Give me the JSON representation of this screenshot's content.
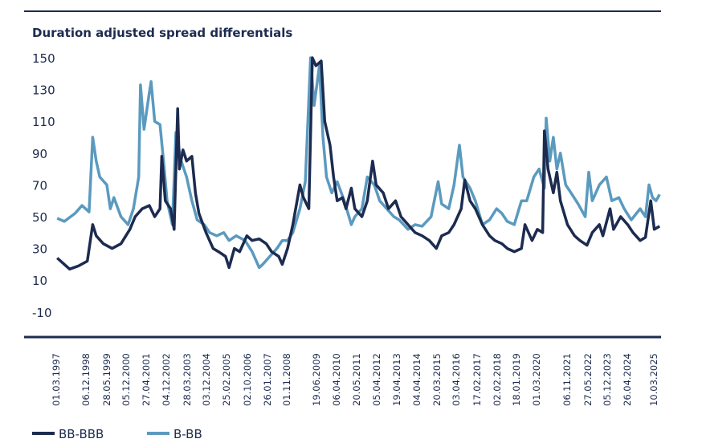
{
  "chart_data": {
    "type": "line",
    "title": "Duration adjusted spread differentials",
    "xlabel": "",
    "ylabel": "",
    "ylim": [
      -26,
      150
    ],
    "yticks": [
      150,
      130,
      110,
      90,
      70,
      50,
      30,
      10,
      -10
    ],
    "xtick_labels": [
      "01.03.1997",
      "06.12.1998",
      "28.05.1999",
      "05.12.2000",
      "27.04.2001",
      "04.12.2002",
      "28.03.2003",
      "03.12.2004",
      "25.02.2005",
      "02.10.2006",
      "26.01.2007",
      "01.11.2008",
      "19.06.2009",
      "06.04.2010",
      "20.05.2011",
      "05.04.2012",
      "19.04.2013",
      "04.04.2014",
      "20.03.2015",
      "03.04.2016",
      "17.02.2017",
      "02.02.2018",
      "18.01.2019",
      "01.03.2020",
      "06.11.2021",
      "27.05.2022",
      "05.12.2023",
      "26.04.2024",
      "10.03.2025"
    ],
    "grid": false,
    "legend": "bottom-left",
    "series": [
      {
        "name": "BB-BBB",
        "color": "#1c2b4f",
        "points": [
          [
            "1997-03",
            24
          ],
          [
            "1997-07",
            20
          ],
          [
            "1997-10",
            17
          ],
          [
            "1998-03",
            19
          ],
          [
            "1998-08",
            22
          ],
          [
            "1998-11",
            45
          ],
          [
            "1999-01",
            38
          ],
          [
            "1999-05",
            33
          ],
          [
            "1999-10",
            30
          ],
          [
            "2000-03",
            33
          ],
          [
            "2000-08",
            42
          ],
          [
            "2000-11",
            50
          ],
          [
            "2001-03",
            55
          ],
          [
            "2001-07",
            57
          ],
          [
            "2001-10",
            50
          ],
          [
            "2002-01",
            55
          ],
          [
            "2002-02",
            88
          ],
          [
            "2002-04",
            60
          ],
          [
            "2002-07",
            55
          ],
          [
            "2002-09",
            42
          ],
          [
            "2002-11",
            118
          ],
          [
            "2002-12",
            80
          ],
          [
            "2003-02",
            92
          ],
          [
            "2003-04",
            85
          ],
          [
            "2003-07",
            88
          ],
          [
            "2003-09",
            65
          ],
          [
            "2003-11",
            52
          ],
          [
            "2004-03",
            40
          ],
          [
            "2004-07",
            30
          ],
          [
            "2004-10",
            28
          ],
          [
            "2005-02",
            25
          ],
          [
            "2005-04",
            18
          ],
          [
            "2005-07",
            30
          ],
          [
            "2005-10",
            28
          ],
          [
            "2006-02",
            38
          ],
          [
            "2006-05",
            35
          ],
          [
            "2006-09",
            36
          ],
          [
            "2007-01",
            33
          ],
          [
            "2007-04",
            28
          ],
          [
            "2007-08",
            25
          ],
          [
            "2007-10",
            20
          ],
          [
            "2008-01",
            30
          ],
          [
            "2008-04",
            45
          ],
          [
            "2008-08",
            70
          ],
          [
            "2008-10",
            62
          ],
          [
            "2009-01",
            55
          ],
          [
            "2009-03",
            150
          ],
          [
            "2009-05",
            145
          ],
          [
            "2009-08",
            148
          ],
          [
            "2009-10",
            110
          ],
          [
            "2010-01",
            95
          ],
          [
            "2010-03",
            75
          ],
          [
            "2010-05",
            60
          ],
          [
            "2010-08",
            62
          ],
          [
            "2010-10",
            55
          ],
          [
            "2011-01",
            68
          ],
          [
            "2011-03",
            55
          ],
          [
            "2011-07",
            50
          ],
          [
            "2011-10",
            60
          ],
          [
            "2012-01",
            85
          ],
          [
            "2012-03",
            70
          ],
          [
            "2012-07",
            65
          ],
          [
            "2012-10",
            55
          ],
          [
            "2013-02",
            60
          ],
          [
            "2013-05",
            50
          ],
          [
            "2013-09",
            45
          ],
          [
            "2014-01",
            40
          ],
          [
            "2014-05",
            38
          ],
          [
            "2014-09",
            35
          ],
          [
            "2015-01",
            30
          ],
          [
            "2015-04",
            38
          ],
          [
            "2015-08",
            40
          ],
          [
            "2015-11",
            45
          ],
          [
            "2016-03",
            55
          ],
          [
            "2016-05",
            73
          ],
          [
            "2016-08",
            60
          ],
          [
            "2016-11",
            55
          ],
          [
            "2017-03",
            45
          ],
          [
            "2017-07",
            38
          ],
          [
            "2017-10",
            35
          ],
          [
            "2018-02",
            33
          ],
          [
            "2018-05",
            30
          ],
          [
            "2018-09",
            28
          ],
          [
            "2019-01",
            30
          ],
          [
            "2019-03",
            45
          ],
          [
            "2019-07",
            35
          ],
          [
            "2019-10",
            42
          ],
          [
            "2020-01",
            40
          ],
          [
            "2020-02",
            104
          ],
          [
            "2020-04",
            80
          ],
          [
            "2020-07",
            65
          ],
          [
            "2020-09",
            78
          ],
          [
            "2020-11",
            60
          ],
          [
            "2021-03",
            45
          ],
          [
            "2021-07",
            38
          ],
          [
            "2021-10",
            35
          ],
          [
            "2022-02",
            32
          ],
          [
            "2022-05",
            40
          ],
          [
            "2022-09",
            45
          ],
          [
            "2022-11",
            38
          ],
          [
            "2023-03",
            55
          ],
          [
            "2023-05",
            42
          ],
          [
            "2023-09",
            50
          ],
          [
            "2024-01",
            45
          ],
          [
            "2024-04",
            40
          ],
          [
            "2024-08",
            35
          ],
          [
            "2024-11",
            37
          ],
          [
            "2025-02",
            60
          ],
          [
            "2025-04",
            42
          ],
          [
            "2025-07",
            44
          ]
        ]
      },
      {
        "name": "B-BB",
        "color": "#5b9abf",
        "points": [
          [
            "1997-03",
            49
          ],
          [
            "1997-07",
            47
          ],
          [
            "1998-01",
            52
          ],
          [
            "1998-05",
            57
          ],
          [
            "1998-09",
            53
          ],
          [
            "1998-11",
            100
          ],
          [
            "1999-01",
            85
          ],
          [
            "1999-03",
            75
          ],
          [
            "1999-07",
            70
          ],
          [
            "1999-09",
            55
          ],
          [
            "1999-11",
            62
          ],
          [
            "2000-03",
            50
          ],
          [
            "2000-07",
            45
          ],
          [
            "2000-10",
            55
          ],
          [
            "2001-01",
            75
          ],
          [
            "2001-02",
            133
          ],
          [
            "2001-04",
            105
          ],
          [
            "2001-07",
            128
          ],
          [
            "2001-08",
            135
          ],
          [
            "2001-10",
            110
          ],
          [
            "2002-01",
            108
          ],
          [
            "2002-03",
            85
          ],
          [
            "2002-05",
            60
          ],
          [
            "2002-08",
            45
          ],
          [
            "2002-10",
            103
          ],
          [
            "2003-01",
            85
          ],
          [
            "2003-04",
            75
          ],
          [
            "2003-07",
            60
          ],
          [
            "2003-10",
            48
          ],
          [
            "2004-02",
            45
          ],
          [
            "2004-05",
            40
          ],
          [
            "2004-09",
            38
          ],
          [
            "2005-01",
            40
          ],
          [
            "2005-04",
            35
          ],
          [
            "2005-08",
            38
          ],
          [
            "2006-01",
            35
          ],
          [
            "2006-05",
            28
          ],
          [
            "2006-09",
            18
          ],
          [
            "2006-11",
            20
          ],
          [
            "2007-03",
            25
          ],
          [
            "2007-07",
            30
          ],
          [
            "2007-10",
            35
          ],
          [
            "2008-01",
            35
          ],
          [
            "2008-04",
            40
          ],
          [
            "2008-08",
            55
          ],
          [
            "2008-11",
            72
          ],
          [
            "2009-02",
            150
          ],
          [
            "2009-04",
            120
          ],
          [
            "2009-07",
            145
          ],
          [
            "2009-09",
            100
          ],
          [
            "2009-11",
            75
          ],
          [
            "2010-02",
            65
          ],
          [
            "2010-05",
            72
          ],
          [
            "2010-09",
            60
          ],
          [
            "2011-01",
            45
          ],
          [
            "2011-03",
            50
          ],
          [
            "2011-07",
            55
          ],
          [
            "2011-10",
            75
          ],
          [
            "2012-02",
            70
          ],
          [
            "2012-05",
            60
          ],
          [
            "2012-09",
            55
          ],
          [
            "2013-01",
            50
          ],
          [
            "2013-04",
            48
          ],
          [
            "2013-09",
            42
          ],
          [
            "2014-01",
            45
          ],
          [
            "2014-05",
            44
          ],
          [
            "2014-10",
            50
          ],
          [
            "2015-02",
            72
          ],
          [
            "2015-04",
            58
          ],
          [
            "2015-08",
            55
          ],
          [
            "2015-11",
            70
          ],
          [
            "2016-02",
            95
          ],
          [
            "2016-04",
            75
          ],
          [
            "2016-08",
            68
          ],
          [
            "2016-11",
            60
          ],
          [
            "2017-03",
            45
          ],
          [
            "2017-07",
            48
          ],
          [
            "2017-11",
            55
          ],
          [
            "2018-02",
            52
          ],
          [
            "2018-05",
            47
          ],
          [
            "2018-09",
            45
          ],
          [
            "2019-01",
            60
          ],
          [
            "2019-04",
            60
          ],
          [
            "2019-08",
            75
          ],
          [
            "2019-11",
            80
          ],
          [
            "2020-02",
            68
          ],
          [
            "2020-03",
            112
          ],
          [
            "2020-05",
            85
          ],
          [
            "2020-07",
            100
          ],
          [
            "2020-09",
            80
          ],
          [
            "2020-11",
            90
          ],
          [
            "2021-02",
            70
          ],
          [
            "2021-05",
            65
          ],
          [
            "2021-09",
            58
          ],
          [
            "2022-01",
            50
          ],
          [
            "2022-03",
            78
          ],
          [
            "2022-05",
            60
          ],
          [
            "2022-09",
            70
          ],
          [
            "2023-01",
            75
          ],
          [
            "2023-04",
            60
          ],
          [
            "2023-08",
            62
          ],
          [
            "2023-11",
            55
          ],
          [
            "2024-03",
            48
          ],
          [
            "2024-08",
            55
          ],
          [
            "2024-11",
            50
          ],
          [
            "2025-01",
            70
          ],
          [
            "2025-03",
            62
          ],
          [
            "2025-05",
            60
          ],
          [
            "2025-07",
            64
          ]
        ]
      }
    ]
  }
}
